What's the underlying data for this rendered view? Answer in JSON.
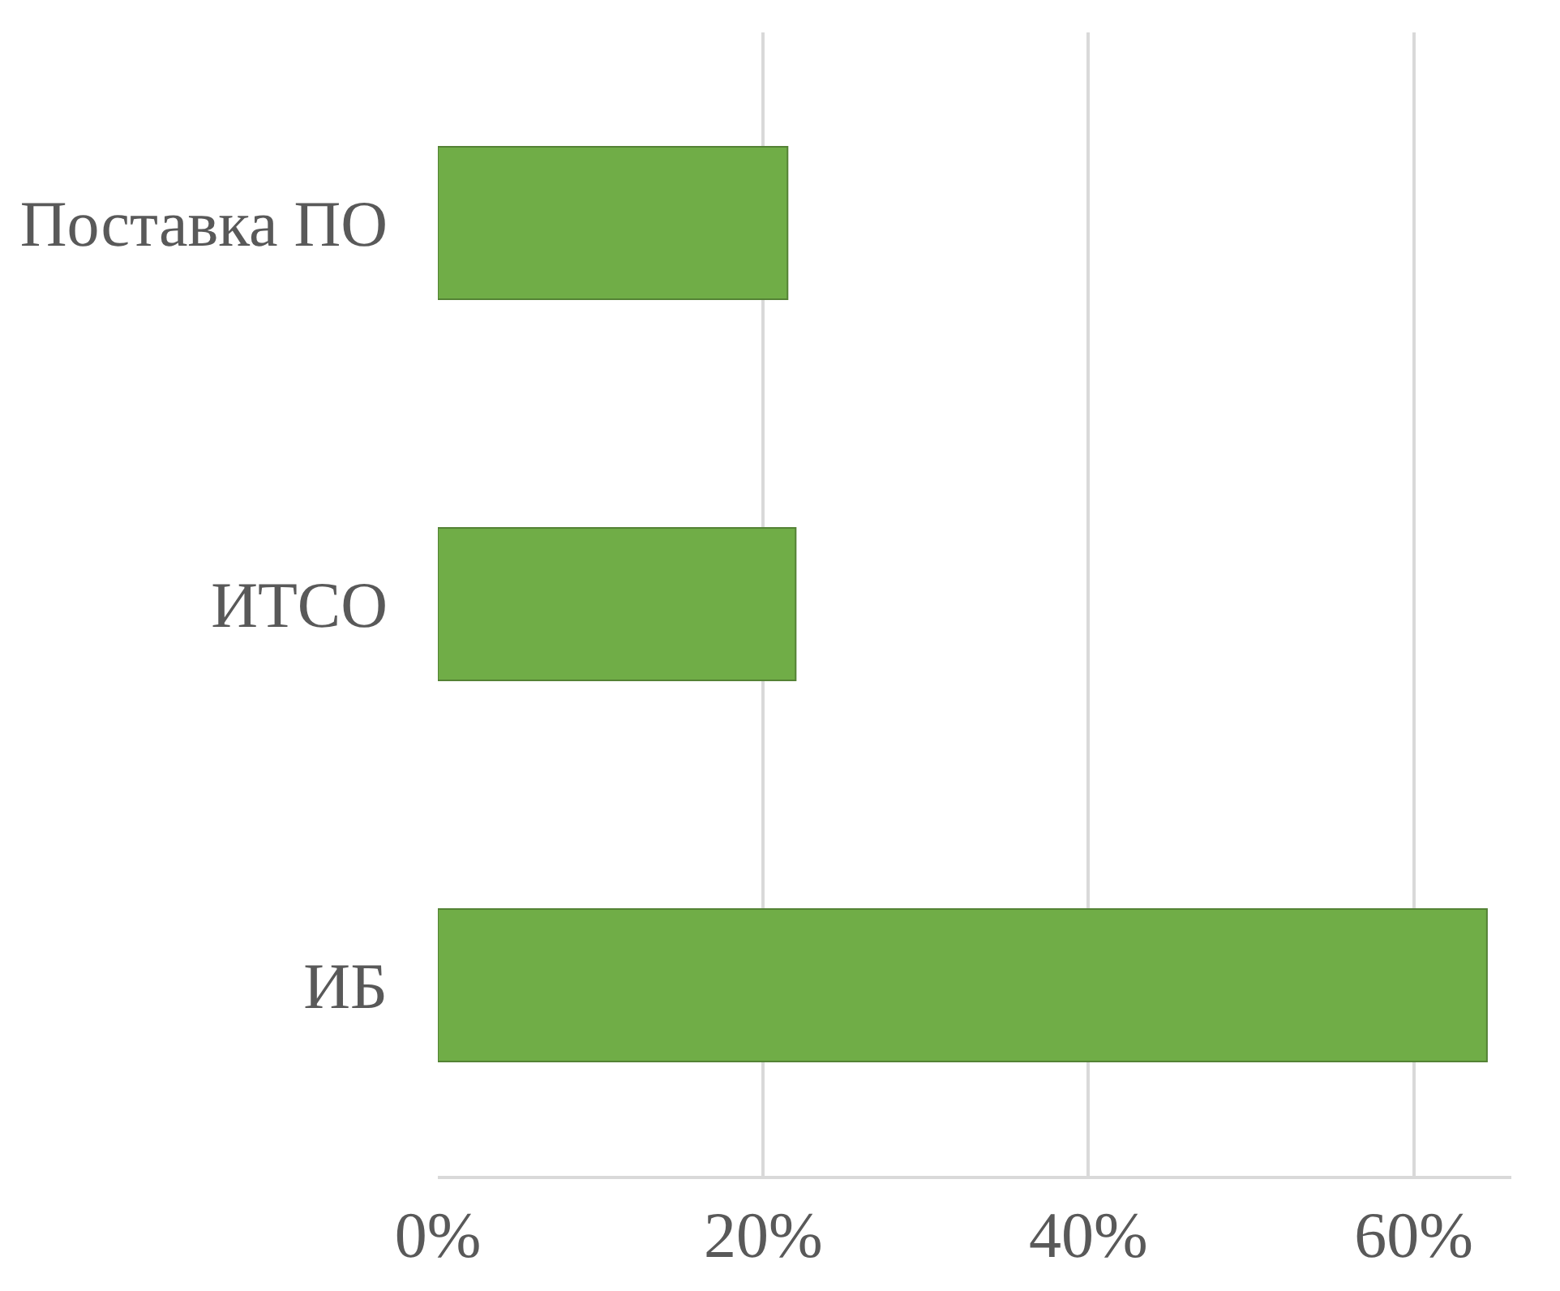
{
  "chart_data": {
    "type": "bar",
    "orientation": "horizontal",
    "categories": [
      "Поставка ПО",
      "ИТСО",
      "ИБ"
    ],
    "series": [
      {
        "color": "#70ad47",
        "values": [
          21.5,
          22,
          64.5
        ]
      }
    ],
    "xlim": [
      0,
      66
    ],
    "xticks": [
      {
        "value": 0,
        "label": "0%"
      },
      {
        "value": 20,
        "label": "20%"
      },
      {
        "value": 40,
        "label": "40%"
      },
      {
        "value": 60,
        "label": "60%"
      }
    ],
    "grid": "x"
  }
}
